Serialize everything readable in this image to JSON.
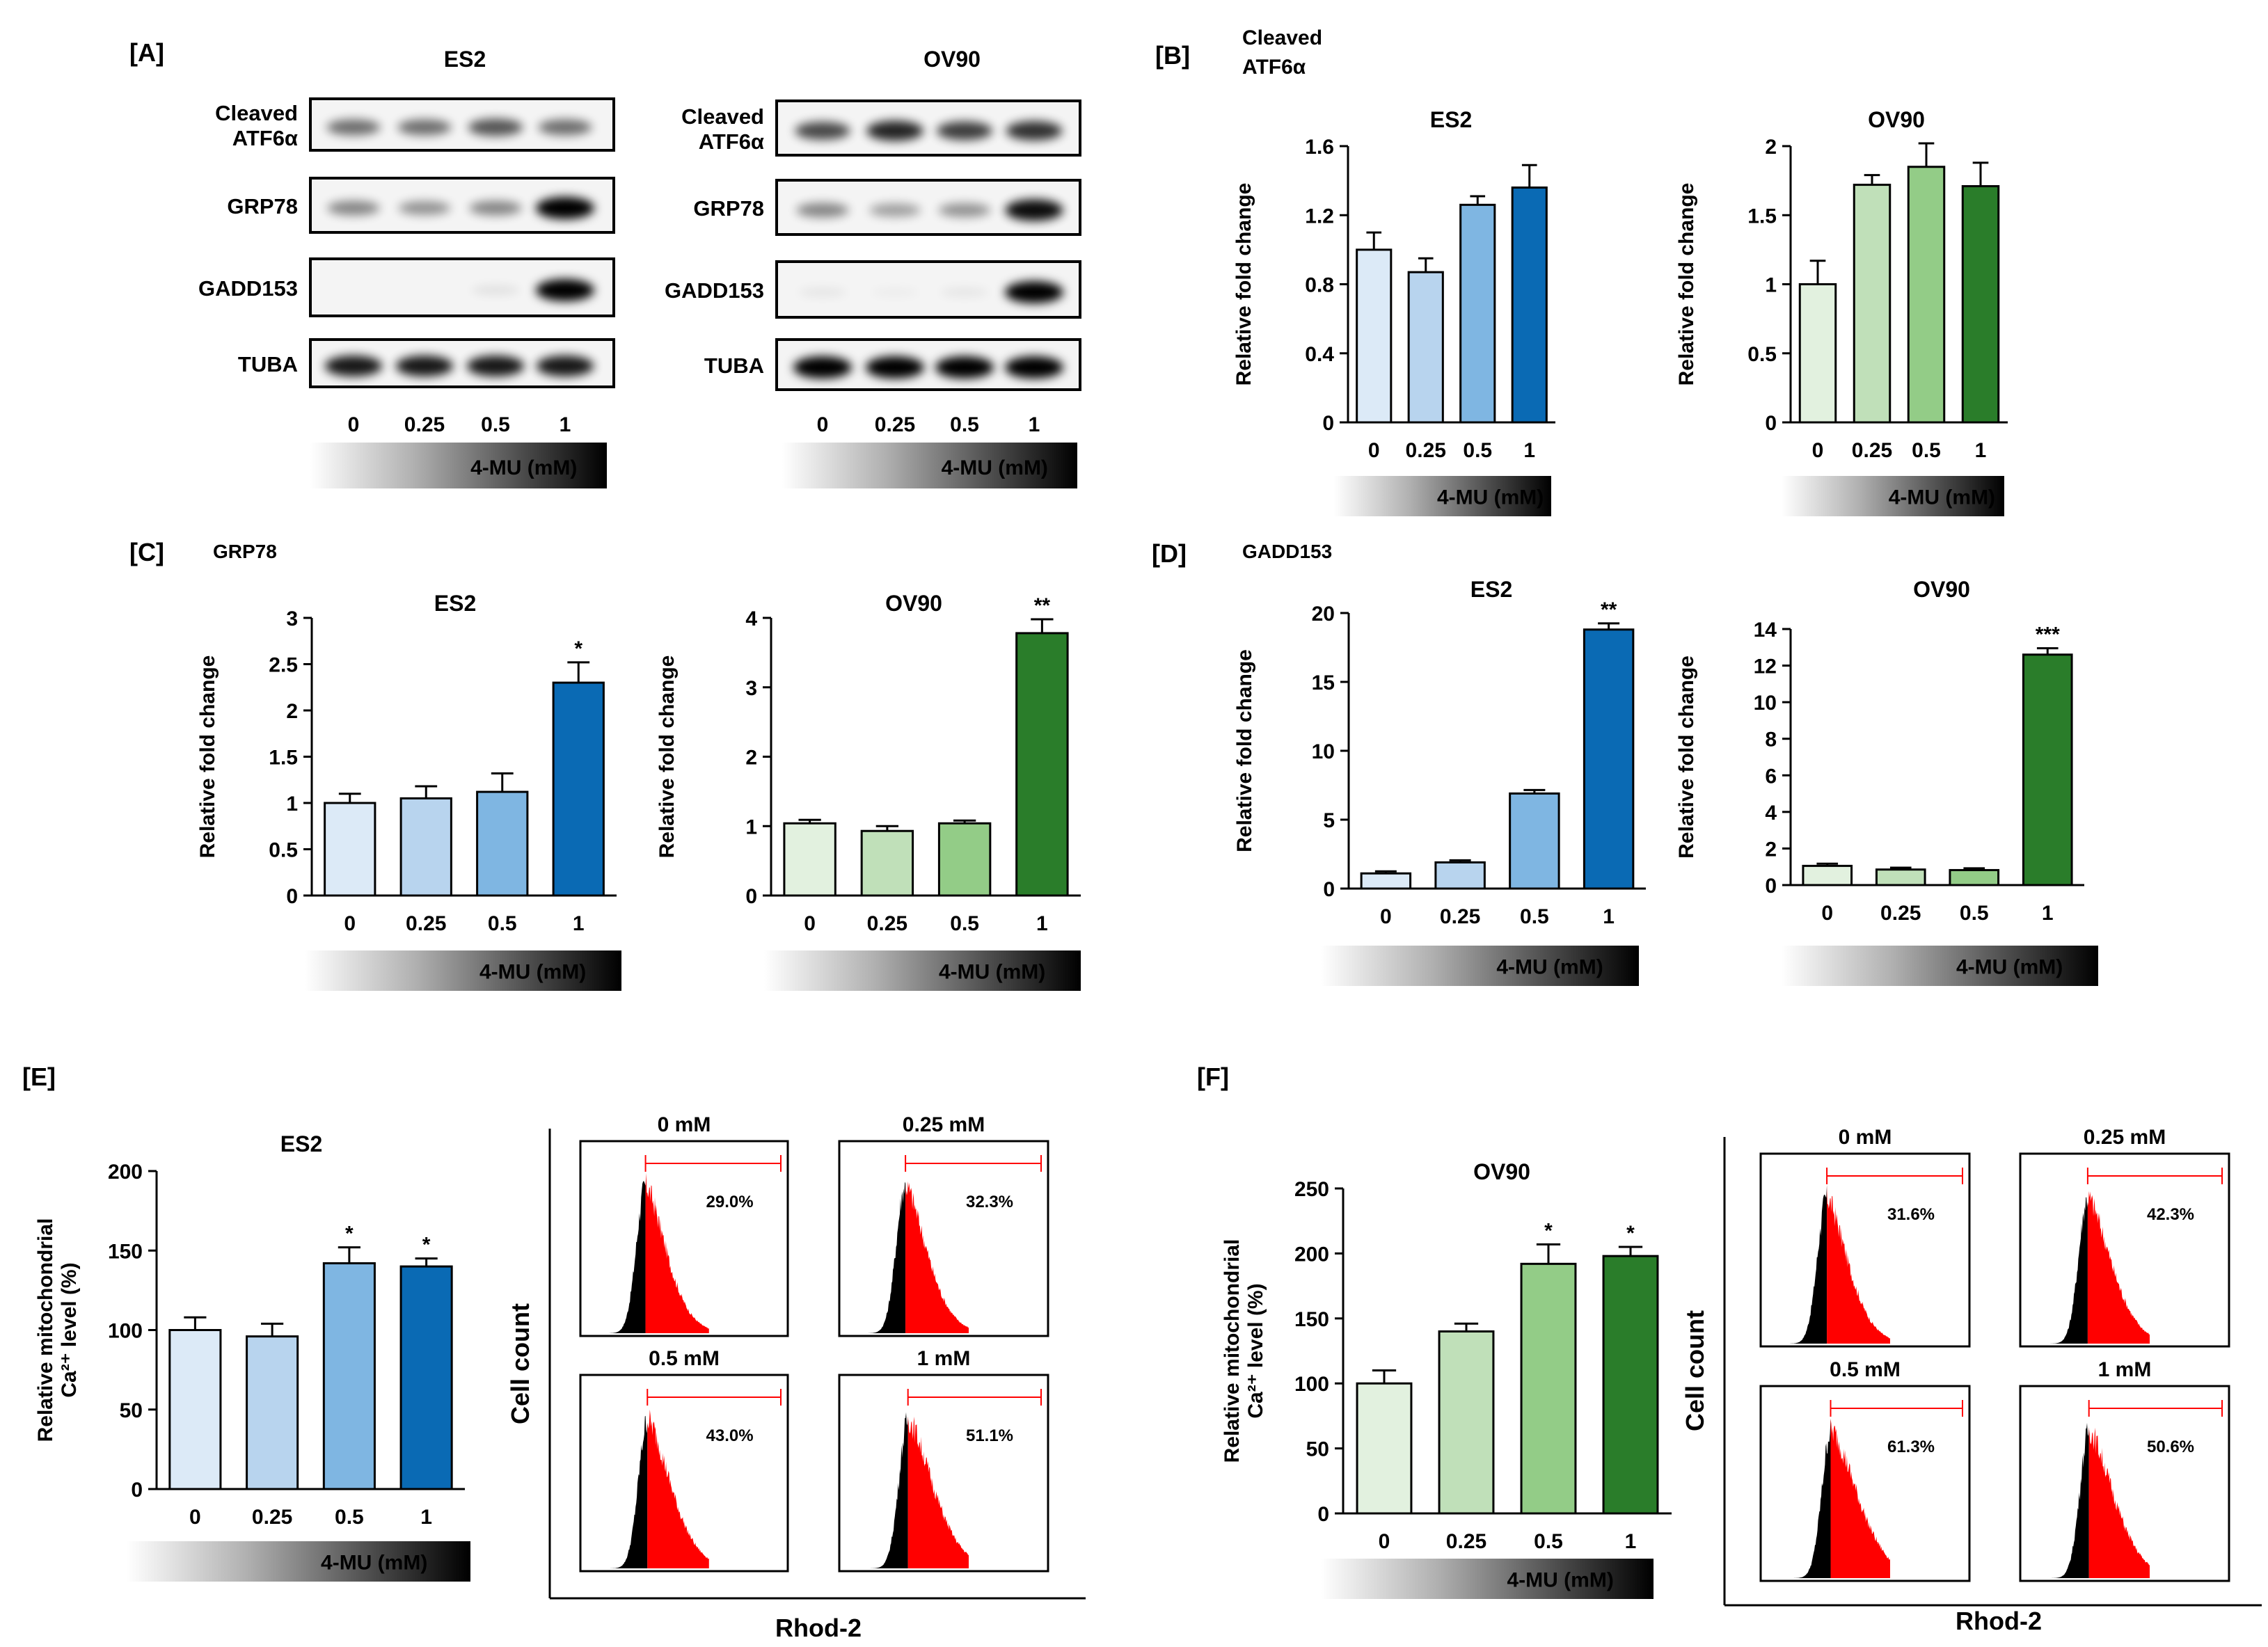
{
  "panels": {
    "A": {
      "label": "[A]",
      "blots": [
        {
          "title": "ES2",
          "rows": [
            "Cleaved\nATF6α",
            "GRP78",
            "GADD153",
            "TUBA"
          ],
          "lanes": [
            "0",
            "0.25",
            "0.5",
            "1"
          ],
          "treatment": "4-MU (mM)"
        },
        {
          "title": "OV90",
          "rows": [
            "Cleaved\nATF6α",
            "GRP78",
            "GADD153",
            "TUBA"
          ],
          "lanes": [
            "0",
            "0.25",
            "0.5",
            "1"
          ],
          "treatment": "4-MU (mM)"
        }
      ]
    },
    "B": {
      "label": "[B]",
      "subtitle": "Cleaved\nATF6α"
    },
    "C": {
      "label": "[C]",
      "subtitle": "GRP78"
    },
    "D": {
      "label": "[D]",
      "subtitle": "GADD153"
    },
    "E": {
      "label": "[E]",
      "flow": {
        "ylabel": "Cell count",
        "xlabel": "Rhod-2",
        "plots": [
          {
            "title": "0 mM",
            "percent": "29.0%",
            "fraction": 0.29
          },
          {
            "title": "0.25 mM",
            "percent": "32.3%",
            "fraction": 0.323
          },
          {
            "title": "0.5 mM",
            "percent": "43.0%",
            "fraction": 0.43
          },
          {
            "title": "1 mM",
            "percent": "51.1%",
            "fraction": 0.511
          }
        ]
      }
    },
    "F": {
      "label": "[F]",
      "flow": {
        "ylabel": "Cell count",
        "xlabel": "Rhod-2",
        "plots": [
          {
            "title": "0 mM",
            "percent": "31.6%",
            "fraction": 0.316
          },
          {
            "title": "0.25 mM",
            "percent": "42.3%",
            "fraction": 0.423
          },
          {
            "title": "0.5 mM",
            "percent": "61.3%",
            "fraction": 0.613
          },
          {
            "title": "1 mM",
            "percent": "50.6%",
            "fraction": 0.506
          }
        ]
      }
    }
  },
  "chart_data": [
    {
      "id": "B-ES2",
      "type": "bar",
      "title": "ES2",
      "xlabel": "",
      "ylabel": "Relative fold change",
      "treatment": "4-MU (mM)",
      "categories": [
        "0",
        "0.25",
        "0.5",
        "1"
      ],
      "values": [
        1.0,
        0.87,
        1.26,
        1.36
      ],
      "errors": [
        0.1,
        0.08,
        0.05,
        0.13
      ],
      "significance": [
        "",
        "",
        "",
        ""
      ],
      "ylim": [
        0,
        1.6
      ],
      "yticks": [
        "0",
        "0.4",
        "0.8",
        "1.2",
        "1.6"
      ],
      "colors": [
        "#dceaf7",
        "#b8d4ee",
        "#7fb6e2",
        "#0a6ab4"
      ]
    },
    {
      "id": "B-OV90",
      "type": "bar",
      "title": "OV90",
      "xlabel": "",
      "ylabel": "Relative fold change",
      "treatment": "4-MU (mM)",
      "categories": [
        "0",
        "0.25",
        "0.5",
        "1"
      ],
      "values": [
        1.0,
        1.72,
        1.85,
        1.71
      ],
      "errors": [
        0.17,
        0.07,
        0.17,
        0.17
      ],
      "significance": [
        "",
        "",
        "",
        ""
      ],
      "ylim": [
        0,
        2
      ],
      "yticks": [
        "0",
        "0.5",
        "1",
        "1.5",
        "2"
      ],
      "colors": [
        "#e2f1df",
        "#c0e0b9",
        "#93cc87",
        "#2a7d2a"
      ]
    },
    {
      "id": "C-ES2",
      "type": "bar",
      "title": "ES2",
      "xlabel": "",
      "ylabel": "Relative fold change",
      "treatment": "4-MU (mM)",
      "categories": [
        "0",
        "0.25",
        "0.5",
        "1"
      ],
      "values": [
        1.0,
        1.05,
        1.12,
        2.3
      ],
      "errors": [
        0.1,
        0.13,
        0.2,
        0.22
      ],
      "significance": [
        "",
        "",
        "",
        "*"
      ],
      "ylim": [
        0,
        3
      ],
      "yticks": [
        "0",
        "0.5",
        "1",
        "1.5",
        "2",
        "2.5",
        "3"
      ],
      "colors": [
        "#dceaf7",
        "#b8d4ee",
        "#7fb6e2",
        "#0a6ab4"
      ]
    },
    {
      "id": "C-OV90",
      "type": "bar",
      "title": "OV90",
      "xlabel": "",
      "ylabel": "Relative fold change",
      "treatment": "4-MU (mM)",
      "categories": [
        "0",
        "0.25",
        "0.5",
        "1"
      ],
      "values": [
        1.04,
        0.93,
        1.04,
        3.78
      ],
      "errors": [
        0.05,
        0.07,
        0.04,
        0.2
      ],
      "significance": [
        "",
        "",
        "",
        "**"
      ],
      "ylim": [
        0,
        4
      ],
      "yticks": [
        "0",
        "1",
        "2",
        "3",
        "4"
      ],
      "colors": [
        "#e2f1df",
        "#c0e0b9",
        "#93cc87",
        "#2a7d2a"
      ]
    },
    {
      "id": "D-ES2",
      "type": "bar",
      "title": "ES2",
      "xlabel": "",
      "ylabel": "Relative fold change",
      "treatment": "4-MU (mM)",
      "categories": [
        "0",
        "0.25",
        "0.5",
        "1"
      ],
      "values": [
        1.1,
        1.9,
        6.9,
        18.8
      ],
      "errors": [
        0.15,
        0.15,
        0.25,
        0.45
      ],
      "significance": [
        "",
        "",
        "",
        "**"
      ],
      "ylim": [
        0,
        20
      ],
      "yticks": [
        "0",
        "5",
        "10",
        "15",
        "20"
      ],
      "colors": [
        "#dceaf7",
        "#b8d4ee",
        "#7fb6e2",
        "#0a6ab4"
      ]
    },
    {
      "id": "D-OV90",
      "type": "bar",
      "title": "OV90",
      "xlabel": "",
      "ylabel": "Relative fold change",
      "treatment": "4-MU (mM)",
      "categories": [
        "0",
        "0.25",
        "0.5",
        "1"
      ],
      "values": [
        1.05,
        0.85,
        0.82,
        12.6
      ],
      "errors": [
        0.12,
        0.1,
        0.1,
        0.35
      ],
      "significance": [
        "",
        "",
        "",
        "***"
      ],
      "ylim": [
        0,
        14
      ],
      "yticks": [
        "0",
        "2",
        "4",
        "6",
        "8",
        "10",
        "12",
        "14"
      ],
      "colors": [
        "#e2f1df",
        "#c0e0b9",
        "#93cc87",
        "#2a7d2a"
      ]
    },
    {
      "id": "E-ES2",
      "type": "bar",
      "title": "ES2",
      "xlabel": "",
      "ylabel": "Relative mitochondrial\nCa²⁺ level (%)",
      "treatment": "4-MU (mM)",
      "categories": [
        "0",
        "0.25",
        "0.5",
        "1"
      ],
      "values": [
        100,
        96,
        142,
        140
      ],
      "errors": [
        8,
        8,
        10,
        5
      ],
      "significance": [
        "",
        "",
        "*",
        "*"
      ],
      "ylim": [
        0,
        200
      ],
      "yticks": [
        "0",
        "50",
        "100",
        "150",
        "200"
      ],
      "colors": [
        "#dceaf7",
        "#b8d4ee",
        "#7fb6e2",
        "#0a6ab4"
      ]
    },
    {
      "id": "F-OV90",
      "type": "bar",
      "title": "OV90",
      "xlabel": "",
      "ylabel": "Relative mitochondrial\nCa²⁺ level (%)",
      "treatment": "4-MU (mM)",
      "categories": [
        "0",
        "0.25",
        "0.5",
        "1"
      ],
      "values": [
        100,
        140,
        192,
        198
      ],
      "errors": [
        10,
        6,
        15,
        7
      ],
      "significance": [
        "",
        "",
        "*",
        "*"
      ],
      "ylim": [
        0,
        250
      ],
      "yticks": [
        "0",
        "50",
        "100",
        "150",
        "200",
        "250"
      ],
      "colors": [
        "#e2f1df",
        "#c0e0b9",
        "#93cc87",
        "#2a7d2a"
      ]
    }
  ]
}
